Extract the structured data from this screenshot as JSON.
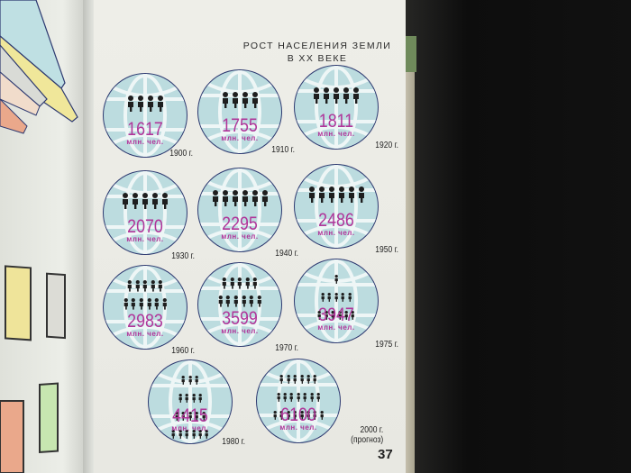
{
  "title_line1": "РОСТ НАСЕЛЕНИЯ ЗЕМЛИ",
  "title_line2": "В XX ВЕКЕ",
  "page_number": "37",
  "colors": {
    "value_text": "#b0359a",
    "globe_fill": "#bcdcdf",
    "globe_border": "#2d3970",
    "figure": "#1e1e1e"
  },
  "icons": {
    "globe": "globe-icon",
    "person": "person-icon"
  },
  "chart_data": {
    "type": "pictogram",
    "title": "РОСТ НАСЕЛЕНИЯ ЗЕМЛИ В XX ВЕКЕ",
    "unit": "млн. чел.",
    "items": [
      {
        "year": "1900 г.",
        "value": 1617,
        "figures": [
          4
        ]
      },
      {
        "year": "1910 г.",
        "value": 1755,
        "figures": [
          4
        ]
      },
      {
        "year": "1920 г.",
        "value": 1811,
        "figures": [
          5
        ]
      },
      {
        "year": "1930 г.",
        "value": 2070,
        "figures": [
          5
        ]
      },
      {
        "year": "1940 г.",
        "value": 2295,
        "figures": [
          6
        ]
      },
      {
        "year": "1950 г.",
        "value": 2486,
        "figures": [
          6
        ]
      },
      {
        "year": "1960 г.",
        "value": 2983,
        "figures": [
          5,
          6
        ]
      },
      {
        "year": "1970 г.",
        "value": 3599,
        "figures": [
          5,
          6
        ]
      },
      {
        "year": "1975 г.",
        "value": 3947,
        "figures": [
          1,
          5,
          6
        ]
      },
      {
        "year": "1980 г.",
        "value": 4415,
        "figures": [
          3,
          4,
          5,
          6
        ]
      },
      {
        "year": "2000 г. (прогноз)",
        "value": 6100,
        "figures": [
          6,
          7,
          8
        ]
      }
    ]
  }
}
